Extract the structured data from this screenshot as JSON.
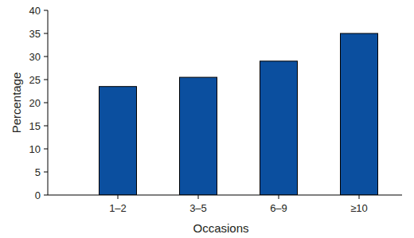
{
  "chart_data": {
    "type": "bar",
    "categories": [
      "1–2",
      "3–5",
      "6–9",
      "≥10"
    ],
    "values": [
      23.5,
      25.5,
      29,
      35
    ],
    "color": "#0b4f9f",
    "x_label": "Occasions",
    "y_label": "Percentage",
    "ylim": [
      0,
      40
    ],
    "yticks": [
      0,
      5,
      10,
      15,
      20,
      25,
      30,
      35,
      40
    ],
    "grid": false
  }
}
